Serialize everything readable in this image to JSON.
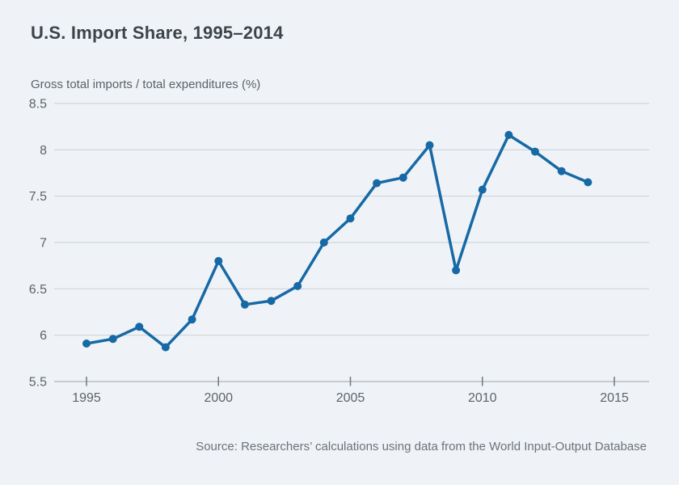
{
  "page": {
    "background_color": "#eff3f7"
  },
  "chart_data": {
    "type": "line",
    "title": "U.S. Import Share, 1995–2014",
    "ylabel": "Gross total imports / total expenditures (%)",
    "xlabel": "",
    "x": [
      1995,
      1996,
      1997,
      1998,
      1999,
      2000,
      2001,
      2002,
      2003,
      2004,
      2005,
      2006,
      2007,
      2008,
      2009,
      2010,
      2011,
      2012,
      2013,
      2014
    ],
    "series": [
      {
        "name": "Gross total imports / total expenditures (%)",
        "values": [
          5.91,
          5.96,
          6.09,
          5.87,
          6.17,
          6.8,
          6.33,
          6.37,
          6.53,
          7.0,
          7.26,
          7.64,
          7.7,
          8.05,
          6.7,
          7.57,
          8.16,
          7.98,
          7.77,
          7.65
        ]
      }
    ],
    "ylim": [
      5.5,
      8.5
    ],
    "xlim": [
      1993.8,
      2016.3
    ],
    "y_ticks": [
      8.5,
      8,
      7.5,
      7,
      6.5,
      6,
      5.5
    ],
    "x_ticks": [
      1995,
      2000,
      2005,
      2010,
      2015
    ],
    "grid": "horizontal",
    "legend_position": "none",
    "line_color": "#1769a5",
    "grid_color": "#cfd4d8",
    "axis_color": "#c6cbd0",
    "tick_color": "#70767c",
    "tick_label_color": "#5d6369",
    "source_note": "Source: Researchers’ calculations using data from the World Input-Output Database"
  }
}
